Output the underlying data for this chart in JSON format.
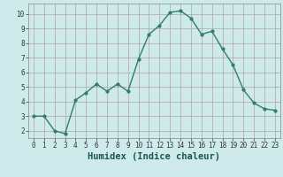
{
  "xlabel": "Humidex (Indice chaleur)",
  "x": [
    0,
    1,
    2,
    3,
    4,
    5,
    6,
    7,
    8,
    9,
    10,
    11,
    12,
    13,
    14,
    15,
    16,
    17,
    18,
    19,
    20,
    21,
    22,
    23
  ],
  "y": [
    3.0,
    3.0,
    2.0,
    1.8,
    4.1,
    4.6,
    5.2,
    4.7,
    5.2,
    4.7,
    6.9,
    8.6,
    9.2,
    10.1,
    10.2,
    9.7,
    8.6,
    8.8,
    7.6,
    6.5,
    4.8,
    3.9,
    3.5,
    3.4
  ],
  "line_color": "#2e7d6e",
  "marker": "o",
  "marker_size": 2,
  "line_width": 1.0,
  "bg_color": "#ceeaea",
  "grid_color": "#b0a0a8",
  "xlim": [
    -0.5,
    23.5
  ],
  "ylim": [
    1.5,
    10.7
  ],
  "yticks": [
    2,
    3,
    4,
    5,
    6,
    7,
    8,
    9,
    10
  ],
  "xticks": [
    0,
    1,
    2,
    3,
    4,
    5,
    6,
    7,
    8,
    9,
    10,
    11,
    12,
    13,
    14,
    15,
    16,
    17,
    18,
    19,
    20,
    21,
    22,
    23
  ],
  "tick_label_fontsize": 5.5,
  "xlabel_fontsize": 7.5
}
